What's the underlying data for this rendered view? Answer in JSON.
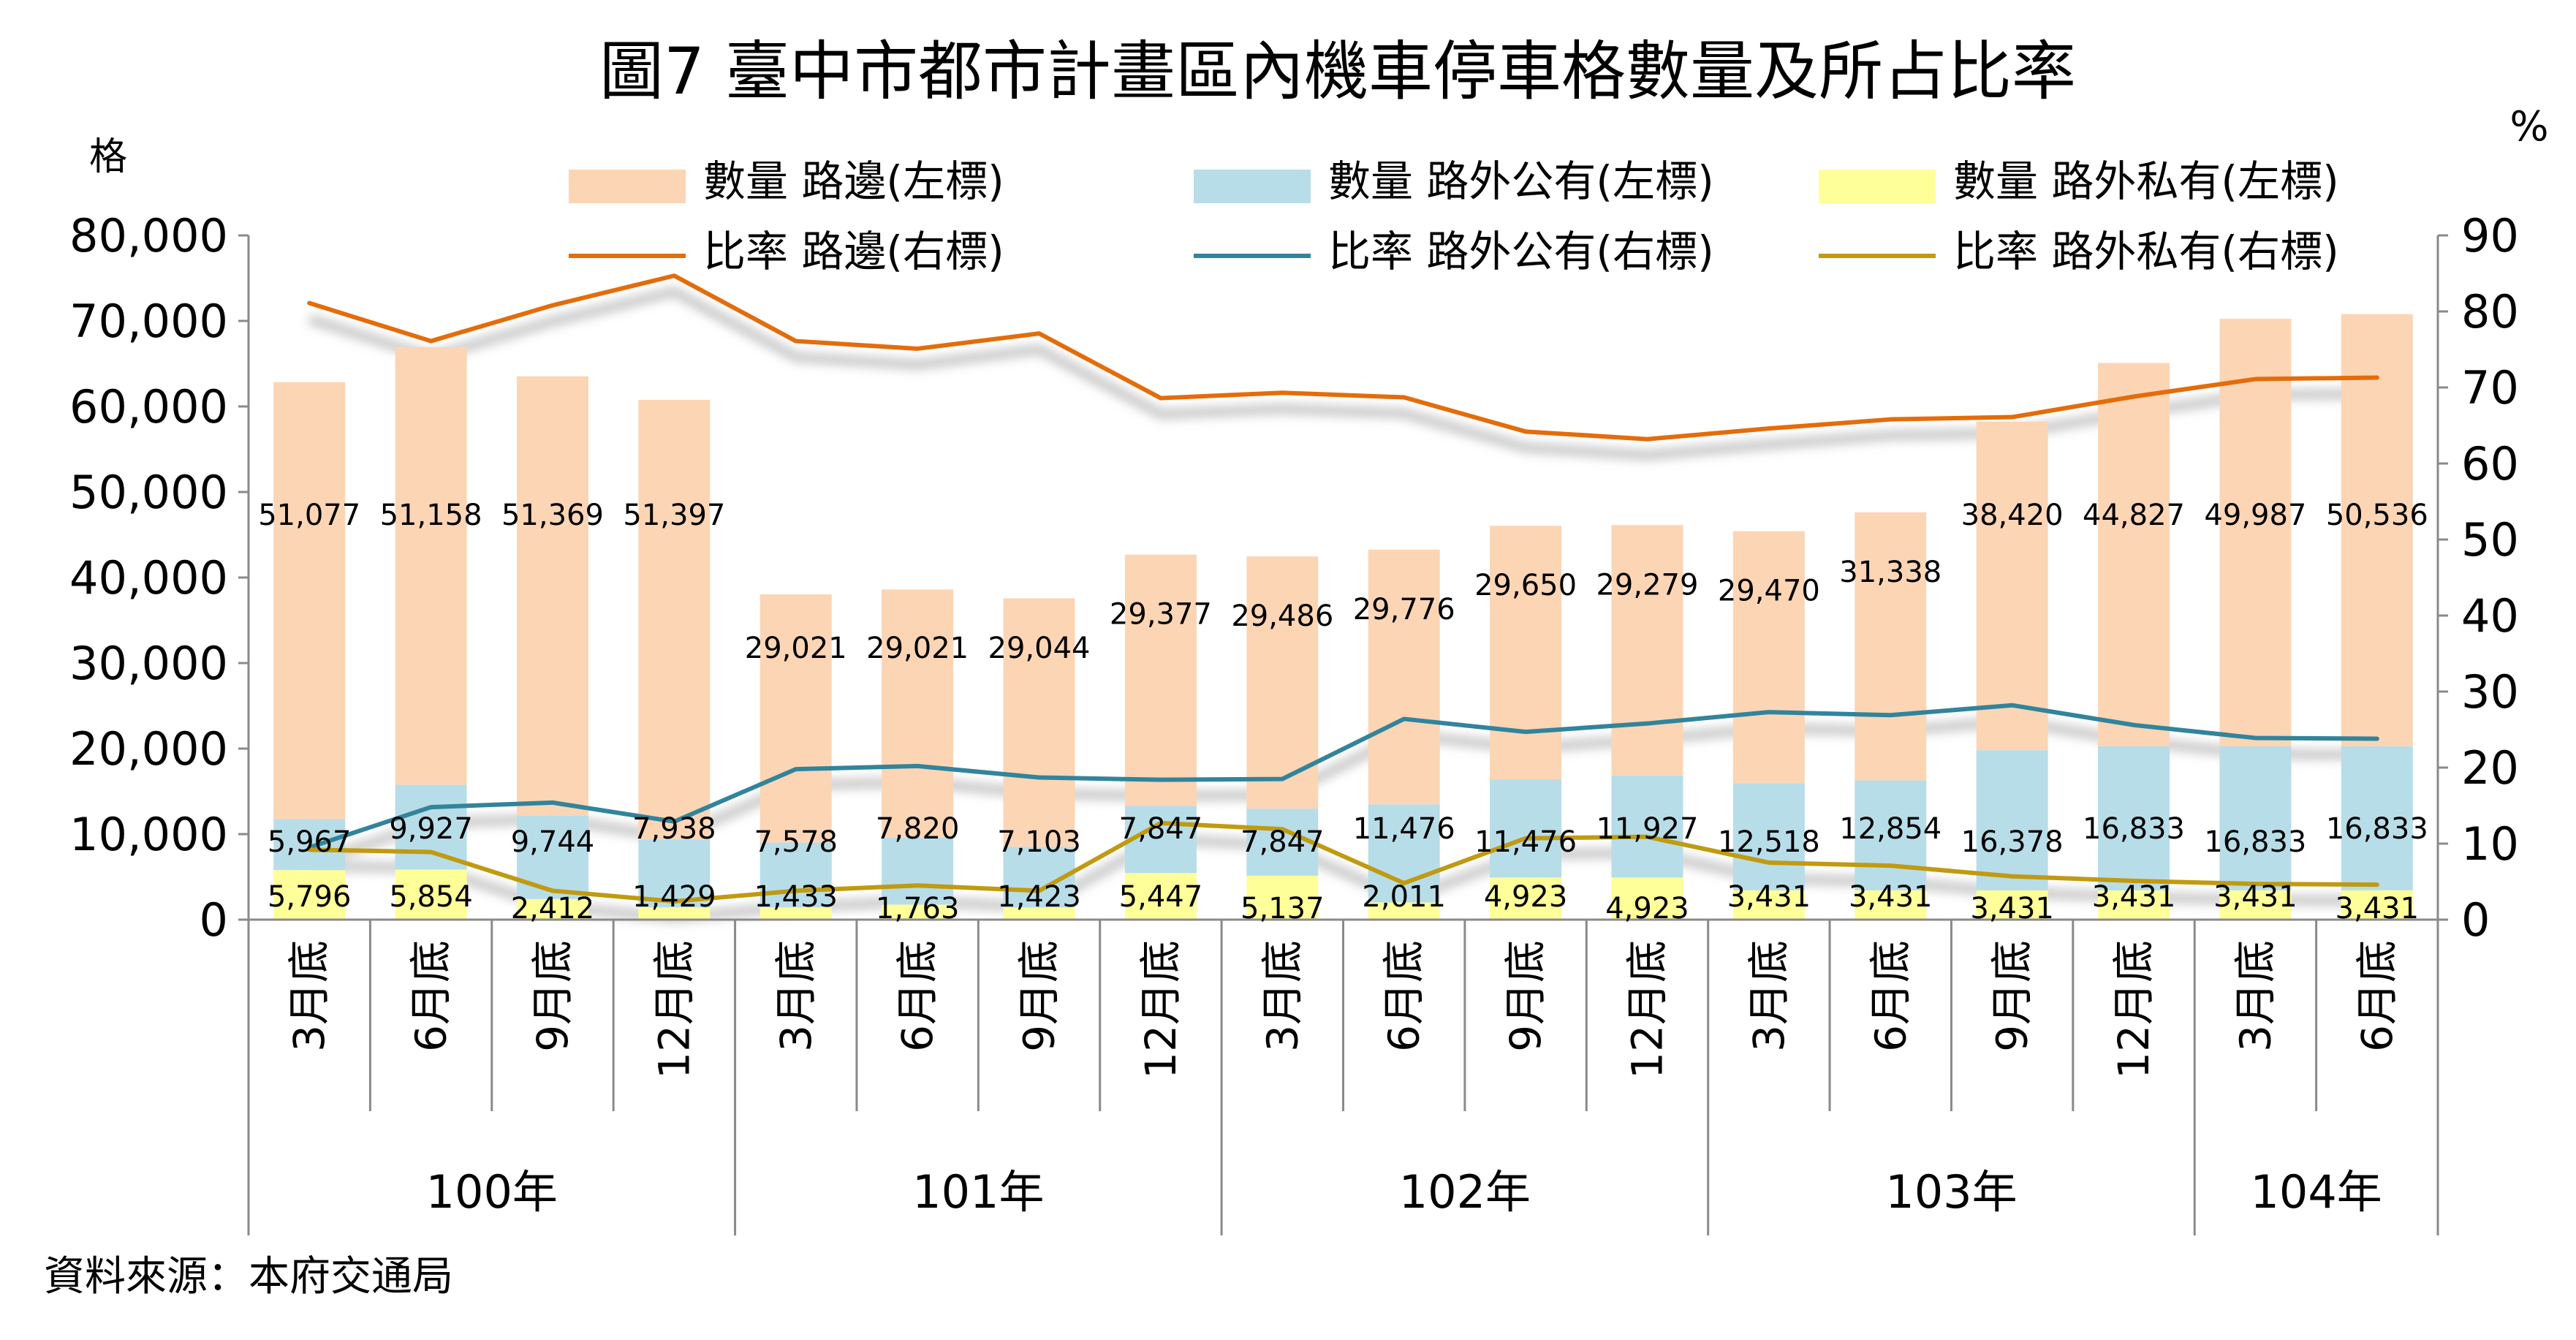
{
  "chart_data": {
    "type": "bar",
    "title": "圖7 臺中市都市計畫區內機車停車格數量及所占比率",
    "left_axis_unit": "格",
    "right_axis_unit": "%",
    "source_note": "資料來源：本府交通局",
    "ylim_left": [
      0,
      80000
    ],
    "ylim_right": [
      0,
      90
    ],
    "left_ticks": [
      "0",
      "10,000",
      "20,000",
      "30,000",
      "40,000",
      "50,000",
      "60,000",
      "70,000",
      "80,000"
    ],
    "right_ticks": [
      "0",
      "10",
      "20",
      "30",
      "40",
      "50",
      "60",
      "70",
      "80",
      "90"
    ],
    "categories": [
      "3月底",
      "6月底",
      "9月底",
      "12月底",
      "3月底",
      "6月底",
      "9月底",
      "12月底",
      "3月底",
      "6月底",
      "9月底",
      "12月底",
      "3月底",
      "6月底",
      "9月底",
      "12月底",
      "3月底",
      "6月底"
    ],
    "year_groups": [
      {
        "label": "100年",
        "count": 4
      },
      {
        "label": "101年",
        "count": 4
      },
      {
        "label": "102年",
        "count": 4
      },
      {
        "label": "103年",
        "count": 4
      },
      {
        "label": "104年",
        "count": 2
      }
    ],
    "series": [
      {
        "name": "數量 路邊(左標)",
        "type": "bar",
        "axis": "left",
        "color": "#fcd5b5",
        "values": [
          51077,
          51158,
          51369,
          51397,
          29021,
          29021,
          29044,
          29377,
          29486,
          29776,
          29650,
          29279,
          29470,
          31338,
          38420,
          44827,
          49987,
          50536
        ],
        "labels": [
          "51,077",
          "51,158",
          "51,369",
          "51,397",
          "29,021",
          "29,021",
          "29,044",
          "29,377",
          "29,486",
          "29,776",
          "29,650",
          "29,279",
          "29,470",
          "31,338",
          "38,420",
          "44,827",
          "49,987",
          "50,536"
        ]
      },
      {
        "name": "數量 路外公有(左標)",
        "type": "bar",
        "axis": "left",
        "color": "#b7dde8",
        "values": [
          5967,
          9927,
          9744,
          7938,
          7578,
          7820,
          7103,
          7847,
          7847,
          11476,
          11476,
          11927,
          12518,
          12854,
          16378,
          16833,
          16833,
          16833
        ],
        "labels": [
          "5,967",
          "9,927",
          "9,744",
          "7,938",
          "7,578",
          "7,820",
          "7,103",
          "7,847",
          "7,847",
          "11,476",
          "11,476",
          "11,927",
          "12,518",
          "12,854",
          "16,378",
          "16,833",
          "16,833",
          "16,833"
        ]
      },
      {
        "name": "數量 路外私有(左標)",
        "type": "bar",
        "axis": "left",
        "color": "#ffff99",
        "values": [
          5796,
          5854,
          2412,
          1429,
          1433,
          1763,
          1423,
          5447,
          5137,
          2011,
          4923,
          4923,
          3431,
          3431,
          3431,
          3431,
          3431,
          3431
        ],
        "labels": [
          "5,796",
          "5,854",
          "2,412",
          "1,429",
          "1,433",
          "1,763",
          "1,423",
          "5,447",
          "5,137",
          "2,011",
          "4,923",
          "4,923",
          "3,431",
          "3,431",
          "3,431",
          "3,431",
          "3,431",
          "3,431"
        ]
      },
      {
        "name": "比率 路邊(右標)",
        "type": "line",
        "axis": "right",
        "color": "#e46c0a",
        "values": [
          81.1,
          76.1,
          80.8,
          84.7,
          76.1,
          75.1,
          77.1,
          68.6,
          69.3,
          68.7,
          64.2,
          63.2,
          64.6,
          65.8,
          66.1,
          68.8,
          71.1,
          71.3
        ]
      },
      {
        "name": "比率 路外公有(右標)",
        "type": "line",
        "axis": "right",
        "color": "#31849b",
        "values": [
          9.5,
          14.8,
          15.4,
          12.9,
          19.8,
          20.2,
          18.7,
          18.4,
          18.5,
          26.4,
          24.7,
          25.8,
          27.3,
          26.9,
          28.2,
          25.6,
          23.9,
          23.8
        ]
      },
      {
        "name": "比率 路外私有(右標)",
        "type": "line",
        "axis": "right",
        "color": "#c09a10",
        "values": [
          9.2,
          8.9,
          3.8,
          2.4,
          3.8,
          4.5,
          3.8,
          12.7,
          11.9,
          4.8,
          10.7,
          10.9,
          7.5,
          7.1,
          5.7,
          5.1,
          4.7,
          4.6
        ]
      }
    ],
    "legend_position": "top",
    "grid": false
  }
}
